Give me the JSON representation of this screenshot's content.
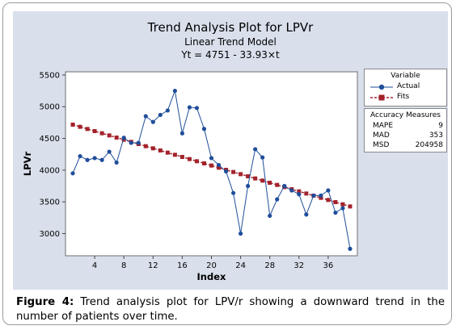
{
  "caption": {
    "label": "Figure 4:",
    "text": "Trend analysis plot for LPV/r showing a downward trend in the number of patients over time."
  },
  "chart_data": {
    "type": "line",
    "title": "Trend Analysis Plot for LPVr",
    "subtitle": "Linear Trend Model",
    "equation": "Yt = 4751 - 33.93×t",
    "xlabel": "Index",
    "ylabel": "LPVr",
    "x_ticks": [
      4,
      8,
      12,
      16,
      20,
      24,
      28,
      32,
      36
    ],
    "y_ticks": [
      3000,
      3500,
      4000,
      4500,
      5000,
      5500
    ],
    "xlim": [
      0,
      40
    ],
    "ylim": [
      2650,
      5550
    ],
    "x": [
      1,
      2,
      3,
      4,
      5,
      6,
      7,
      8,
      9,
      10,
      11,
      12,
      13,
      14,
      15,
      16,
      17,
      18,
      19,
      20,
      21,
      22,
      23,
      24,
      25,
      26,
      27,
      28,
      29,
      30,
      31,
      32,
      33,
      34,
      35,
      36,
      37,
      38,
      39
    ],
    "series": [
      {
        "name": "Actual",
        "color": "#1f4e9a",
        "marker": "circle",
        "line": "solid",
        "values": [
          3950,
          4220,
          4160,
          4190,
          4160,
          4290,
          4120,
          4510,
          4430,
          4430,
          4850,
          4760,
          4870,
          4940,
          5250,
          4580,
          4990,
          4980,
          4650,
          4190,
          4080,
          3980,
          3640,
          3000,
          3750,
          4330,
          4200,
          3280,
          3540,
          3750,
          3680,
          3620,
          3300,
          3600,
          3600,
          3680,
          3330,
          3400,
          2760
        ]
      },
      {
        "name": "Fits",
        "color": "#a3222b",
        "marker": "square",
        "line": "dashed",
        "intercept": 4751,
        "slope": -33.93
      }
    ],
    "legend": {
      "title": "Variable",
      "position": "right"
    },
    "accuracy_measures": {
      "title": "Accuracy Measures",
      "rows": [
        {
          "name": "MAPE",
          "value": "9"
        },
        {
          "name": "MAD",
          "value": "353"
        },
        {
          "name": "MSD",
          "value": "204958"
        }
      ]
    }
  }
}
